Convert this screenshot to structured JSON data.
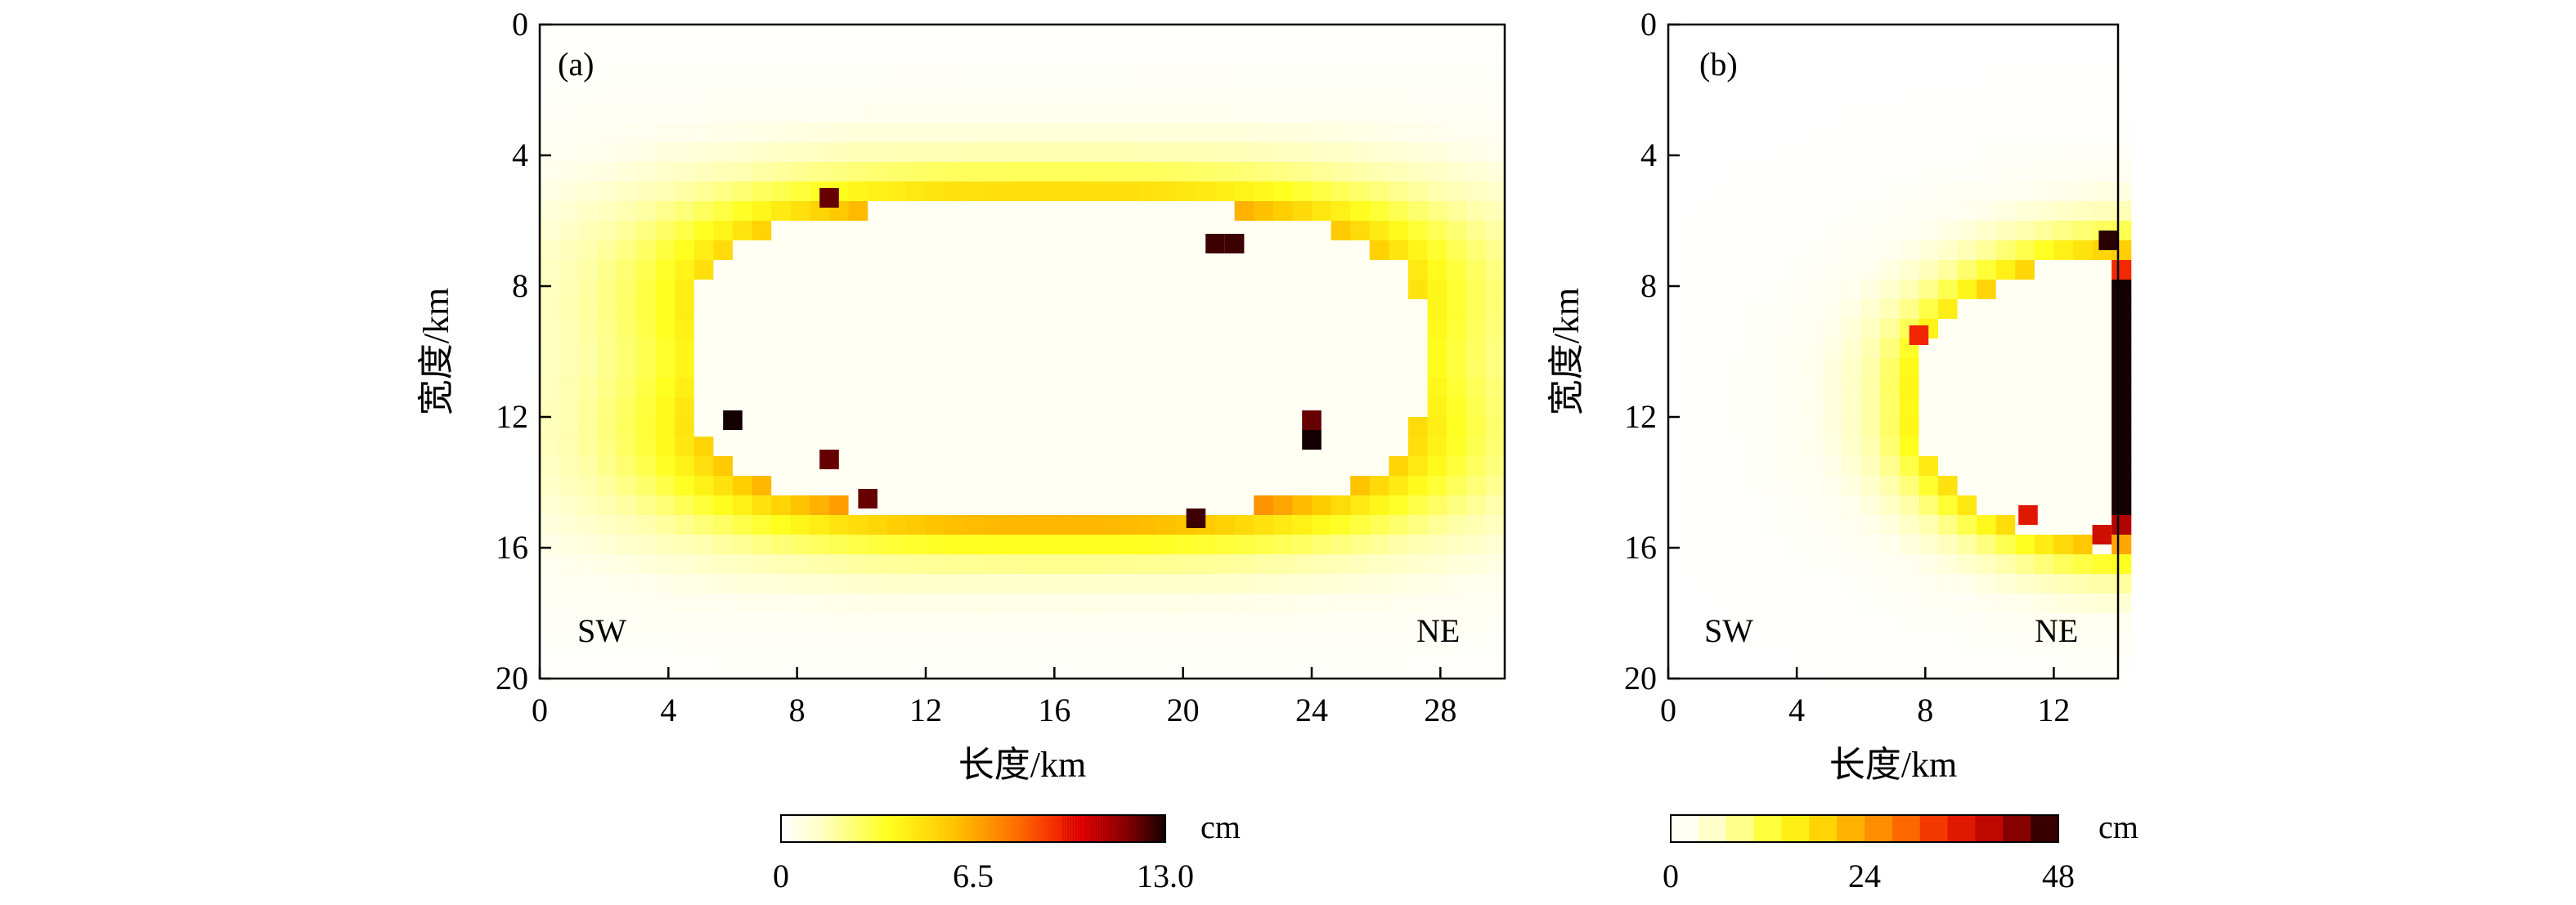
{
  "chart_data": [
    {
      "id": "a",
      "type": "heatmap",
      "panel_label": "(a)",
      "xlabel": "长度/km",
      "ylabel": "宽度/km",
      "xlim": [
        0,
        30
      ],
      "ylim": [
        20,
        0
      ],
      "x_ticks": [
        "0",
        "4",
        "8",
        "12",
        "16",
        "20",
        "24",
        "28"
      ],
      "y_ticks": [
        "0",
        "4",
        "8",
        "12",
        "16",
        "20"
      ],
      "corner_labels": {
        "left": "SW",
        "right": "NE"
      },
      "colorbar": {
        "ticks": [
          "0",
          "6.5",
          "13.0"
        ],
        "unit": "cm",
        "min": 0,
        "max": 13.0,
        "stepped": false
      },
      "field": {
        "cell_size_km": 0.6,
        "cavity": {
          "x_range": [
            4.6,
            27.5
          ],
          "y_range": [
            5.5,
            15.0
          ]
        },
        "peak_top": 6.5,
        "peak_bottom": 7.5,
        "peak_sides": 4.0
      },
      "spot_values": [
        {
          "x": 9.0,
          "y": 5.3,
          "value": 12.0
        },
        {
          "x": 21.0,
          "y": 6.7,
          "value": 12.5
        },
        {
          "x": 21.6,
          "y": 6.7,
          "value": 12.5
        },
        {
          "x": 6.0,
          "y": 12.1,
          "value": 13.0
        },
        {
          "x": 24.0,
          "y": 12.1,
          "value": 12.0
        },
        {
          "x": 24.0,
          "y": 12.7,
          "value": 13.0
        },
        {
          "x": 9.0,
          "y": 13.3,
          "value": 12.0
        },
        {
          "x": 10.2,
          "y": 14.5,
          "value": 12.0
        },
        {
          "x": 20.4,
          "y": 15.1,
          "value": 12.5
        }
      ]
    },
    {
      "id": "b",
      "type": "heatmap",
      "panel_label": "(b)",
      "xlabel": "长度/km",
      "ylabel": "宽度/km",
      "xlim": [
        0,
        14
      ],
      "ylim": [
        20,
        0
      ],
      "x_ticks": [
        "0",
        "4",
        "8",
        "12"
      ],
      "y_ticks": [
        "0",
        "4",
        "8",
        "12",
        "16",
        "20"
      ],
      "corner_labels": {
        "left": "SW",
        "right": "NE"
      },
      "colorbar": {
        "ticks": [
          "0",
          "24",
          "48"
        ],
        "unit": "cm",
        "min": 0,
        "max": 48,
        "stepped": true,
        "steps": 14
      },
      "field": {
        "cell_size_km": 0.6,
        "cavity": {
          "center_x": 15.0,
          "center_y": 11.5,
          "radius_x": 7.5,
          "radius_y": 4.5
        },
        "peak_near": 22,
        "peak_far": 14
      },
      "spot_values": [
        {
          "x": 7.8,
          "y": 9.5,
          "value": 34
        },
        {
          "x": 13.7,
          "y": 6.6,
          "value": 47
        },
        {
          "x": 11.2,
          "y": 15.0,
          "value": 36
        },
        {
          "x": 13.5,
          "y": 15.6,
          "value": 38
        }
      ]
    }
  ]
}
